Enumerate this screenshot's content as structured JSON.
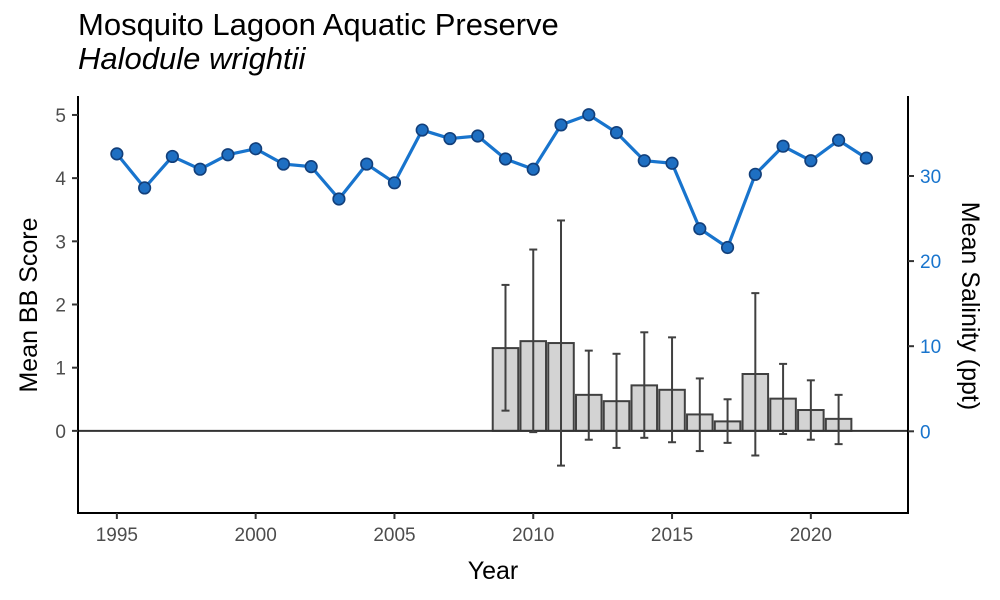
{
  "title": "Mosquito Lagoon Aquatic Preserve",
  "subtitle": "Halodule wrightii",
  "colors": {
    "line": "#1874CD",
    "point_fill": "#1E6FC2",
    "point_stroke": "#123F7A",
    "bar_fill": "#D3D3D3",
    "bar_stroke": "#404040",
    "axis": "#000000",
    "right_axis": "#1874CD"
  },
  "chart_data": {
    "type": "bar",
    "xlabel": "Year",
    "ylabel": "Mean BB Score",
    "y2label": "Mean Salinity (ppt)",
    "xlim": [
      1993.6,
      2023.5
    ],
    "ylim": [
      -1.3,
      5.3
    ],
    "y2lim": [
      -9.6,
      39.4
    ],
    "x_ticks": [
      1995,
      2000,
      2005,
      2010,
      2015,
      2020
    ],
    "y_ticks": [
      0,
      1,
      2,
      3,
      4,
      5
    ],
    "y2_ticks": [
      0,
      10,
      20,
      30
    ],
    "bars": {
      "name": "Mean BB Score",
      "x": [
        2009,
        2010,
        2011,
        2012,
        2013,
        2014,
        2015,
        2016,
        2017,
        2018,
        2019,
        2020,
        2021
      ],
      "values": [
        1.31,
        1.42,
        1.39,
        0.57,
        0.47,
        0.72,
        0.65,
        0.26,
        0.15,
        0.9,
        0.51,
        0.33,
        0.19
      ],
      "err_low": [
        0.32,
        -0.02,
        -0.55,
        -0.14,
        -0.27,
        -0.11,
        -0.18,
        -0.32,
        -0.19,
        -0.39,
        -0.05,
        -0.14,
        -0.21
      ],
      "err_high": [
        2.31,
        2.87,
        3.33,
        1.27,
        1.22,
        1.56,
        1.48,
        0.83,
        0.5,
        2.18,
        1.06,
        0.8,
        0.57
      ]
    },
    "line": {
      "name": "Mean Salinity (ppt)",
      "x": [
        1995,
        1996,
        1997,
        1998,
        1999,
        2000,
        2001,
        2002,
        2003,
        2004,
        2005,
        2006,
        2007,
        2008,
        2009,
        2010,
        2011,
        2012,
        2013,
        2014,
        2015,
        2016,
        2017,
        2018,
        2019,
        2020,
        2021,
        2022
      ],
      "values": [
        32.6,
        28.6,
        32.3,
        30.8,
        32.5,
        33.2,
        31.4,
        31.1,
        27.3,
        31.4,
        29.2,
        35.4,
        34.4,
        34.7,
        32.0,
        30.8,
        36.0,
        37.2,
        35.1,
        31.8,
        31.5,
        23.8,
        21.6,
        30.2,
        33.5,
        31.8,
        34.2,
        32.1
      ]
    }
  }
}
